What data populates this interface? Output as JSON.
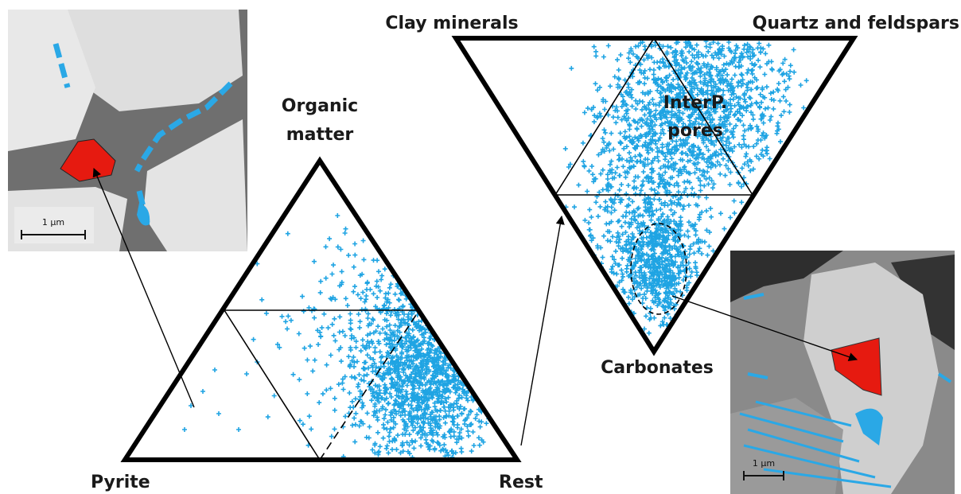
{
  "left_triangle": {
    "top": [
      "Organic",
      "matter"
    ],
    "bottom_left": "Pyrite",
    "bottom_right": "Rest"
  },
  "right_triangle": {
    "top_left": "Clay minerals",
    "top_right": "Quartz and feldspars",
    "bottom": "Carbonates",
    "region": [
      "InterP.",
      "pores"
    ]
  },
  "left_image": {
    "scale_bar": "1 µm"
  },
  "right_image": {
    "scale_bar": "1 µm"
  }
}
